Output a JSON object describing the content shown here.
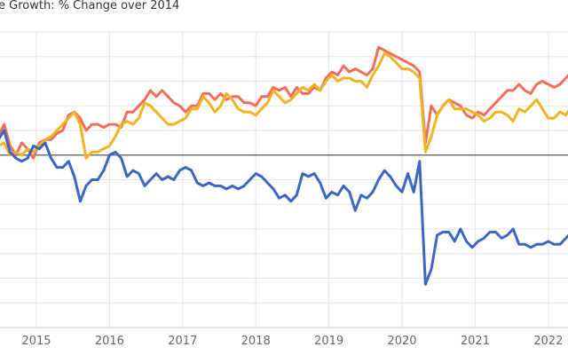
{
  "chart_data": {
    "type": "line",
    "title": "e Growth: % Change over 2014",
    "xlabel": "",
    "ylabel": "",
    "x_ticks": [
      "2015",
      "2016",
      "2017",
      "2018",
      "2019",
      "2020",
      "2021",
      "2022"
    ],
    "ylim": [
      -56,
      40
    ],
    "xlim": [
      2014.48,
      2022.3
    ],
    "grid": true,
    "legend": "none",
    "baseline": 0,
    "series": [
      {
        "color": "#f26d5b",
        "points": [
          [
            2014.48,
            6
          ],
          [
            2014.56,
            10
          ],
          [
            2014.64,
            3
          ],
          [
            2014.72,
            0
          ],
          [
            2014.8,
            4
          ],
          [
            2014.88,
            2
          ],
          [
            2014.96,
            -1
          ],
          [
            2015.04,
            4
          ],
          [
            2015.12,
            5
          ],
          [
            2015.2,
            5
          ],
          [
            2015.28,
            7
          ],
          [
            2015.36,
            8
          ],
          [
            2015.44,
            13
          ],
          [
            2015.52,
            14
          ],
          [
            2015.6,
            12
          ],
          [
            2015.68,
            8
          ],
          [
            2015.76,
            10
          ],
          [
            2015.84,
            10
          ],
          [
            2015.92,
            9
          ],
          [
            2016.0,
            10
          ],
          [
            2016.08,
            10
          ],
          [
            2016.16,
            9
          ],
          [
            2016.24,
            14
          ],
          [
            2016.32,
            14
          ],
          [
            2016.4,
            16
          ],
          [
            2016.48,
            18
          ],
          [
            2016.56,
            21
          ],
          [
            2016.64,
            19
          ],
          [
            2016.72,
            21
          ],
          [
            2016.8,
            19
          ],
          [
            2016.88,
            17
          ],
          [
            2016.96,
            16
          ],
          [
            2017.04,
            14
          ],
          [
            2017.12,
            16
          ],
          [
            2017.2,
            16
          ],
          [
            2017.28,
            20
          ],
          [
            2017.36,
            20
          ],
          [
            2017.44,
            18
          ],
          [
            2017.52,
            20
          ],
          [
            2017.6,
            18
          ],
          [
            2017.68,
            19
          ],
          [
            2017.76,
            19
          ],
          [
            2017.84,
            17
          ],
          [
            2017.92,
            17
          ],
          [
            2018.0,
            16
          ],
          [
            2018.08,
            19
          ],
          [
            2018.16,
            19
          ],
          [
            2018.24,
            22
          ],
          [
            2018.32,
            21
          ],
          [
            2018.4,
            22
          ],
          [
            2018.48,
            19
          ],
          [
            2018.56,
            22
          ],
          [
            2018.64,
            20
          ],
          [
            2018.72,
            20
          ],
          [
            2018.8,
            22
          ],
          [
            2018.88,
            21
          ],
          [
            2018.96,
            25
          ],
          [
            2019.04,
            27
          ],
          [
            2019.12,
            26
          ],
          [
            2019.2,
            29
          ],
          [
            2019.28,
            27
          ],
          [
            2019.36,
            28
          ],
          [
            2019.44,
            27
          ],
          [
            2019.52,
            26
          ],
          [
            2019.6,
            28
          ],
          [
            2019.68,
            35
          ],
          [
            2019.76,
            34
          ],
          [
            2019.84,
            33
          ],
          [
            2019.92,
            32
          ],
          [
            2020.0,
            31
          ],
          [
            2020.08,
            30
          ],
          [
            2020.16,
            29
          ],
          [
            2020.24,
            27
          ],
          [
            2020.32,
            4
          ],
          [
            2020.4,
            16
          ],
          [
            2020.48,
            13
          ],
          [
            2020.56,
            16
          ],
          [
            2020.64,
            18
          ],
          [
            2020.72,
            17
          ],
          [
            2020.8,
            16
          ],
          [
            2020.88,
            13
          ],
          [
            2020.96,
            12
          ],
          [
            2021.04,
            14
          ],
          [
            2021.12,
            13
          ],
          [
            2021.2,
            15
          ],
          [
            2021.28,
            17
          ],
          [
            2021.36,
            19
          ],
          [
            2021.44,
            21
          ],
          [
            2021.52,
            21
          ],
          [
            2021.6,
            23
          ],
          [
            2021.68,
            21
          ],
          [
            2021.76,
            20
          ],
          [
            2021.84,
            23
          ],
          [
            2021.92,
            24
          ],
          [
            2022.0,
            23
          ],
          [
            2022.08,
            22
          ],
          [
            2022.16,
            23
          ],
          [
            2022.24,
            25
          ],
          [
            2022.32,
            27
          ],
          [
            2022.4,
            29
          ]
        ]
      },
      {
        "color": "#f0b323",
        "points": [
          [
            2014.48,
            3
          ],
          [
            2014.56,
            4
          ],
          [
            2014.64,
            0
          ],
          [
            2014.72,
            1
          ],
          [
            2014.8,
            0
          ],
          [
            2014.88,
            2
          ],
          [
            2014.96,
            1
          ],
          [
            2015.04,
            3
          ],
          [
            2015.12,
            5
          ],
          [
            2015.2,
            6
          ],
          [
            2015.28,
            8
          ],
          [
            2015.36,
            10
          ],
          [
            2015.44,
            12
          ],
          [
            2015.52,
            14
          ],
          [
            2015.6,
            10
          ],
          [
            2015.68,
            -1
          ],
          [
            2015.76,
            1
          ],
          [
            2015.84,
            1
          ],
          [
            2015.92,
            2
          ],
          [
            2016.0,
            3
          ],
          [
            2016.08,
            6
          ],
          [
            2016.16,
            10
          ],
          [
            2016.24,
            11
          ],
          [
            2016.32,
            10
          ],
          [
            2016.4,
            12
          ],
          [
            2016.48,
            17
          ],
          [
            2016.56,
            16
          ],
          [
            2016.64,
            14
          ],
          [
            2016.72,
            12
          ],
          [
            2016.8,
            10
          ],
          [
            2016.88,
            10
          ],
          [
            2016.96,
            11
          ],
          [
            2017.04,
            12
          ],
          [
            2017.12,
            15
          ],
          [
            2017.2,
            15
          ],
          [
            2017.28,
            19
          ],
          [
            2017.36,
            17
          ],
          [
            2017.44,
            14
          ],
          [
            2017.52,
            16
          ],
          [
            2017.6,
            20
          ],
          [
            2017.68,
            18
          ],
          [
            2017.76,
            15
          ],
          [
            2017.84,
            14
          ],
          [
            2017.92,
            14
          ],
          [
            2018.0,
            13
          ],
          [
            2018.08,
            15
          ],
          [
            2018.16,
            17
          ],
          [
            2018.24,
            21
          ],
          [
            2018.32,
            19
          ],
          [
            2018.4,
            17
          ],
          [
            2018.48,
            18
          ],
          [
            2018.56,
            20
          ],
          [
            2018.64,
            22
          ],
          [
            2018.72,
            21
          ],
          [
            2018.8,
            23
          ],
          [
            2018.88,
            21
          ],
          [
            2018.96,
            24
          ],
          [
            2019.04,
            26
          ],
          [
            2019.12,
            24
          ],
          [
            2019.2,
            25
          ],
          [
            2019.28,
            25
          ],
          [
            2019.36,
            24
          ],
          [
            2019.44,
            24
          ],
          [
            2019.52,
            22
          ],
          [
            2019.6,
            26
          ],
          [
            2019.68,
            29
          ],
          [
            2019.76,
            33
          ],
          [
            2019.84,
            32
          ],
          [
            2019.92,
            30
          ],
          [
            2020.0,
            28
          ],
          [
            2020.08,
            28
          ],
          [
            2020.16,
            27
          ],
          [
            2020.24,
            25
          ],
          [
            2020.32,
            1
          ],
          [
            2020.4,
            6
          ],
          [
            2020.48,
            13
          ],
          [
            2020.56,
            16
          ],
          [
            2020.64,
            18
          ],
          [
            2020.72,
            15
          ],
          [
            2020.8,
            15
          ],
          [
            2020.88,
            15
          ],
          [
            2020.96,
            14
          ],
          [
            2021.04,
            13
          ],
          [
            2021.12,
            11
          ],
          [
            2021.2,
            12
          ],
          [
            2021.28,
            14
          ],
          [
            2021.36,
            14
          ],
          [
            2021.44,
            13
          ],
          [
            2021.52,
            11
          ],
          [
            2021.6,
            15
          ],
          [
            2021.68,
            14
          ],
          [
            2021.76,
            16
          ],
          [
            2021.84,
            18
          ],
          [
            2021.92,
            15
          ],
          [
            2022.0,
            12
          ],
          [
            2022.08,
            12
          ],
          [
            2022.16,
            14
          ],
          [
            2022.24,
            13
          ],
          [
            2022.32,
            16
          ],
          [
            2022.4,
            18
          ]
        ]
      },
      {
        "color": "#3c66c4",
        "points": [
          [
            2014.48,
            5
          ],
          [
            2014.56,
            8
          ],
          [
            2014.64,
            1
          ],
          [
            2014.72,
            -1
          ],
          [
            2014.8,
            -2
          ],
          [
            2014.88,
            -1
          ],
          [
            2014.96,
            3
          ],
          [
            2015.04,
            2
          ],
          [
            2015.12,
            4
          ],
          [
            2015.2,
            -1
          ],
          [
            2015.28,
            -4
          ],
          [
            2015.36,
            -4
          ],
          [
            2015.44,
            -2
          ],
          [
            2015.52,
            -7
          ],
          [
            2015.6,
            -15
          ],
          [
            2015.68,
            -10
          ],
          [
            2015.76,
            -8
          ],
          [
            2015.84,
            -8
          ],
          [
            2015.92,
            -5
          ],
          [
            2016.0,
            0
          ],
          [
            2016.08,
            1
          ],
          [
            2016.16,
            -1
          ],
          [
            2016.24,
            -7
          ],
          [
            2016.32,
            -5
          ],
          [
            2016.4,
            -6
          ],
          [
            2016.48,
            -10
          ],
          [
            2016.56,
            -8
          ],
          [
            2016.64,
            -6
          ],
          [
            2016.72,
            -8
          ],
          [
            2016.8,
            -7
          ],
          [
            2016.88,
            -8
          ],
          [
            2016.96,
            -5
          ],
          [
            2017.04,
            -4
          ],
          [
            2017.12,
            -5
          ],
          [
            2017.2,
            -9
          ],
          [
            2017.28,
            -10
          ],
          [
            2017.36,
            -9
          ],
          [
            2017.44,
            -10
          ],
          [
            2017.52,
            -10
          ],
          [
            2017.6,
            -11
          ],
          [
            2017.68,
            -10
          ],
          [
            2017.76,
            -11
          ],
          [
            2017.84,
            -10
          ],
          [
            2017.92,
            -8
          ],
          [
            2018.0,
            -6
          ],
          [
            2018.08,
            -7
          ],
          [
            2018.16,
            -9
          ],
          [
            2018.24,
            -11
          ],
          [
            2018.32,
            -14
          ],
          [
            2018.4,
            -13
          ],
          [
            2018.48,
            -15
          ],
          [
            2018.56,
            -13
          ],
          [
            2018.64,
            -6
          ],
          [
            2018.72,
            -7
          ],
          [
            2018.8,
            -6
          ],
          [
            2018.88,
            -9
          ],
          [
            2018.96,
            -14
          ],
          [
            2019.04,
            -12
          ],
          [
            2019.12,
            -13
          ],
          [
            2019.2,
            -10
          ],
          [
            2019.28,
            -12
          ],
          [
            2019.36,
            -18
          ],
          [
            2019.44,
            -13
          ],
          [
            2019.52,
            -14
          ],
          [
            2019.6,
            -12
          ],
          [
            2019.68,
            -8
          ],
          [
            2019.76,
            -5
          ],
          [
            2019.84,
            -7
          ],
          [
            2019.92,
            -10
          ],
          [
            2020.0,
            -12
          ],
          [
            2020.08,
            -6
          ],
          [
            2020.16,
            -12
          ],
          [
            2020.24,
            -2
          ],
          [
            2020.32,
            -42
          ],
          [
            2020.4,
            -37
          ],
          [
            2020.48,
            -26
          ],
          [
            2020.56,
            -25
          ],
          [
            2020.64,
            -25
          ],
          [
            2020.72,
            -28
          ],
          [
            2020.8,
            -24
          ],
          [
            2020.88,
            -28
          ],
          [
            2020.96,
            -30
          ],
          [
            2021.04,
            -28
          ],
          [
            2021.12,
            -27
          ],
          [
            2021.2,
            -25
          ],
          [
            2021.28,
            -25
          ],
          [
            2021.36,
            -27
          ],
          [
            2021.44,
            -26
          ],
          [
            2021.52,
            -24
          ],
          [
            2021.6,
            -29
          ],
          [
            2021.68,
            -29
          ],
          [
            2021.76,
            -30
          ],
          [
            2021.84,
            -29
          ],
          [
            2021.92,
            -29
          ],
          [
            2022.0,
            -28
          ],
          [
            2022.08,
            -29
          ],
          [
            2022.16,
            -29
          ],
          [
            2022.24,
            -27
          ],
          [
            2022.32,
            -25
          ],
          [
            2022.4,
            -24
          ]
        ]
      }
    ]
  }
}
